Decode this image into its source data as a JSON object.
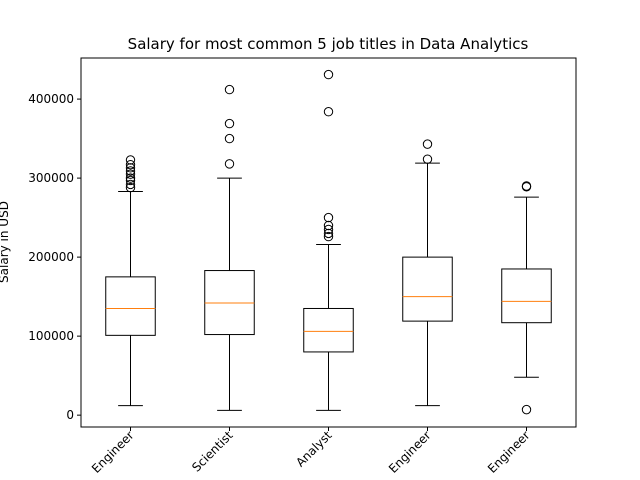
{
  "chart_data": {
    "type": "box",
    "title": "Salary for most common 5 job titles in Data Analytics",
    "ylabel": "Salary in USD",
    "xlabel": "",
    "ylim": [
      -15000,
      452000
    ],
    "yticks": [
      0,
      100000,
      200000,
      300000,
      400000
    ],
    "ytick_labels": [
      "0",
      "100000",
      "200000",
      "300000",
      "400000"
    ],
    "grid": false,
    "colors": {
      "box": "#000000",
      "median": "#ff7f0e",
      "flier": "#000000"
    },
    "categories": [
      "Engineer",
      "Scientist",
      "Analyst",
      "Engineer",
      "Engineer"
    ],
    "boxes": [
      {
        "whisker_low": 12000,
        "q1": 101000,
        "median": 135000,
        "q3": 175000,
        "whisker_high": 283000,
        "fliers": [
          288000,
          292000,
          297000,
          300000,
          305000,
          309000,
          313000,
          317000,
          323000
        ]
      },
      {
        "whisker_low": 6000,
        "q1": 102000,
        "median": 142000,
        "q3": 183000,
        "whisker_high": 300000,
        "fliers": [
          318000,
          350000,
          369000,
          412000
        ]
      },
      {
        "whisker_low": 6000,
        "q1": 80000,
        "median": 106000,
        "q3": 135000,
        "whisker_high": 216000,
        "fliers": [
          226000,
          230000,
          235000,
          240000,
          250000,
          384000,
          431000
        ]
      },
      {
        "whisker_low": 12000,
        "q1": 119000,
        "median": 150000,
        "q3": 200000,
        "whisker_high": 319000,
        "fliers": [
          324000,
          343000
        ]
      },
      {
        "whisker_low": 48000,
        "q1": 117000,
        "median": 144000,
        "q3": 185000,
        "whisker_high": 276000,
        "fliers": [
          289000,
          290000,
          7000
        ]
      }
    ]
  }
}
